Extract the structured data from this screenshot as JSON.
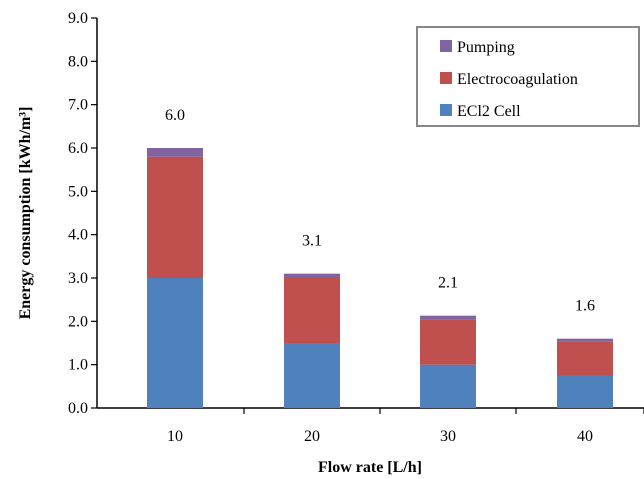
{
  "chart_data": {
    "type": "bar",
    "stacked": true,
    "categories": [
      "10",
      "20",
      "30",
      "40"
    ],
    "series": [
      {
        "name": "ECl2 Cell",
        "values": [
          3.0,
          1.5,
          1.0,
          0.75
        ],
        "color": "#4f81bd"
      },
      {
        "name": "Electrocoagulation",
        "values": [
          2.8,
          1.5,
          1.05,
          0.78
        ],
        "color": "#c0504d"
      },
      {
        "name": "Pumping",
        "values": [
          0.2,
          0.1,
          0.08,
          0.07
        ],
        "color": "#8064a2"
      }
    ],
    "totals_labels": [
      "6.0",
      "3.1",
      "2.1",
      "1.6"
    ],
    "xlabel": "Flow rate [L/h]",
    "ylabel": "Energy consumption [kWh/m³]",
    "ylim": [
      0,
      9
    ],
    "yticks": [
      "0.0",
      "1.0",
      "2.0",
      "3.0",
      "4.0",
      "5.0",
      "6.0",
      "7.0",
      "8.0",
      "9.0"
    ],
    "grid": false,
    "legend_position": "top-right",
    "legend_order": [
      "Pumping",
      "Electrocoagulation",
      "ECl2 Cell"
    ]
  }
}
